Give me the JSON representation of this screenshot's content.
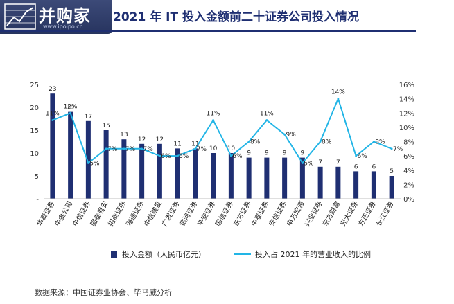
{
  "header": {
    "logo_text": "并购家",
    "logo_sub": "www.ipoipo.cn",
    "title": "2021 年 IT 投入金额前二十证券公司投入情况"
  },
  "source": "数据来源：中国证券业协会、毕马威分析",
  "colors": {
    "bar": "#1f2f72",
    "line": "#22b5e6",
    "title": "#1f2f72"
  },
  "chart_data": {
    "type": "bar",
    "categories": [
      "华泰证券",
      "中金公司",
      "中信证券",
      "国泰君安",
      "招商证券",
      "海通证券",
      "中信建投",
      "广发证券",
      "银河证券",
      "平安证券",
      "国信证券",
      "东方证券",
      "中泰证券",
      "安信证券",
      "申万宏源",
      "兴业证券",
      "东方财富",
      "光大证券",
      "方正证券",
      "长江证券"
    ],
    "series": [
      {
        "name": "投入金额（人民币亿元）",
        "type": "bar",
        "axis": "left",
        "values": [
          23,
          19,
          17,
          15,
          13,
          12,
          12,
          11,
          11,
          10,
          10,
          9,
          9,
          9,
          9,
          7,
          7,
          6,
          6,
          5
        ],
        "labels": [
          "23",
          "19",
          "17",
          "15",
          "13",
          "12",
          "12",
          "11",
          "11",
          "10",
          "10",
          "9",
          "9",
          "9",
          "9",
          "7",
          "7",
          "6",
          "6",
          "5"
        ]
      },
      {
        "name": "投入占 2021 年的营业收入的比例",
        "type": "line",
        "axis": "right",
        "values": [
          11,
          12,
          5,
          7,
          7,
          7,
          6,
          6,
          7,
          11,
          6,
          8,
          11,
          9,
          5,
          8,
          14,
          6,
          8,
          7
        ],
        "labels": [
          "11%",
          "12%",
          "5%",
          "7%",
          "7%",
          "7%",
          "6%",
          "6%",
          "7%",
          "11%",
          "6%",
          "8%",
          "11%",
          "9%",
          "5%",
          "8%",
          "14%",
          "6%",
          "8%",
          "7%"
        ]
      }
    ],
    "y_left": {
      "ticks": [
        "-",
        "5",
        "10",
        "15",
        "20",
        "25"
      ],
      "ylim": [
        0,
        25
      ]
    },
    "y_right": {
      "ticks": [
        "0%",
        "2%",
        "4%",
        "6%",
        "8%",
        "10%",
        "12%",
        "14%",
        "16%"
      ],
      "ylim": [
        0,
        16
      ]
    },
    "legend_position": "bottom"
  }
}
